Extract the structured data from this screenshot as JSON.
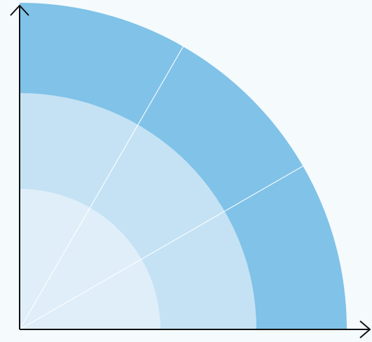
{
  "diagram": {
    "type": "quarter-circle-sectors",
    "rings": 3,
    "sectors": 3,
    "sector_boundaries_deg": [
      0,
      30,
      60,
      90
    ],
    "axes": [
      "x-axis-arrow",
      "y-axis-arrow"
    ]
  },
  "colors": {
    "background": "#f5fafd",
    "outer_ring": "#80c2e8",
    "middle_ring": "#c4e2f4",
    "inner_ring": "#dfeef9",
    "divider": "#ffffff",
    "axis": "#111111"
  }
}
